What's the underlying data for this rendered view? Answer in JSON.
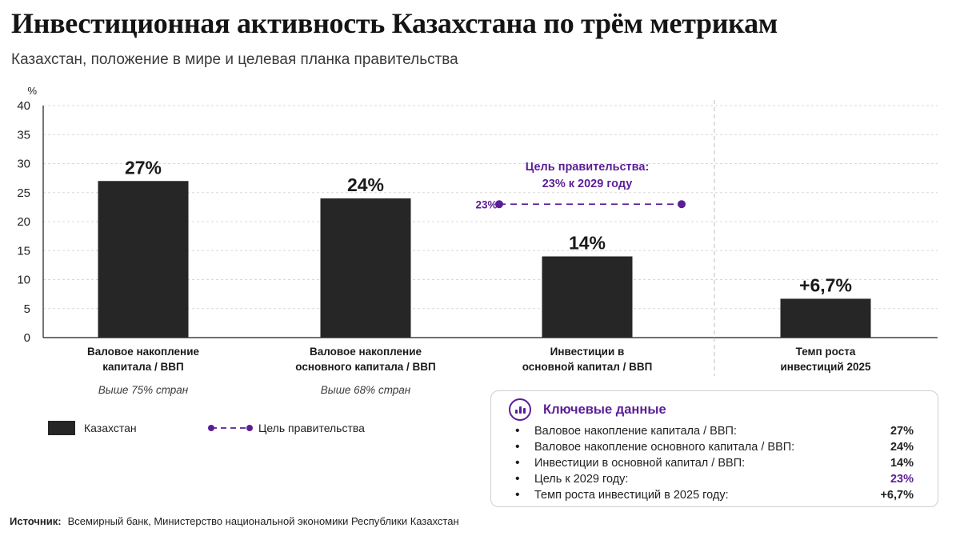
{
  "header": {
    "title": "Инвестиционная активность Казахстана по трём метрикам",
    "subtitle": "Казахстан, положение в мире и целевая планка правительства"
  },
  "chart_data": {
    "type": "bar",
    "ylabel": "%",
    "ylim": [
      0,
      40
    ],
    "yticks": [
      "0",
      "5",
      "10",
      "15",
      "20",
      "25",
      "30",
      "35",
      "40"
    ],
    "grid": true,
    "bars": [
      {
        "label_lines": [
          "Валовое накопление",
          "капитала / ВВП"
        ],
        "value": 27,
        "value_label": "27%",
        "note": "Выше 75% стран"
      },
      {
        "label_lines": [
          "Валовое накопление",
          "основного капитала / ВВП"
        ],
        "value": 24,
        "value_label": "24%",
        "note": "Выше 68% стран"
      },
      {
        "label_lines": [
          "Инвестиции в",
          "основной капитал / ВВП"
        ],
        "value": 14,
        "value_label": "14%",
        "note": ""
      },
      {
        "label_lines": [
          "Темп роста",
          "инвестиций 2025"
        ],
        "value": 6.7,
        "value_label": "+6,7%",
        "note": ""
      }
    ],
    "target": {
      "value": 23,
      "value_label": "23%",
      "annotation_lines": [
        "Цель правительства:",
        "23% к 2029 году"
      ]
    },
    "legend": [
      {
        "name": "Казахстан",
        "kind": "bar"
      },
      {
        "name": "Цель правительства",
        "kind": "dashed-line"
      }
    ],
    "colors": {
      "bar": "#262626",
      "target": "#5b1e96",
      "grid": "#d9d9d9",
      "axis": "#1a1a1a",
      "divider": "#bdbdbd"
    }
  },
  "key_data": {
    "title": "Ключевые данные",
    "items": [
      {
        "label": "Валовое накопление капитала / ВВП:",
        "value": "27%"
      },
      {
        "label": "Валовое накопление основного капитала / ВВП:",
        "value": "24%"
      },
      {
        "label": "Инвестиции в основной капитал / ВВП:",
        "value": "14%"
      },
      {
        "label": "Цель к 2029 году:",
        "value": "23%"
      },
      {
        "label": "Темп роста инвестиций в 2025 году:",
        "value": "+6,7%"
      }
    ]
  },
  "source": {
    "label": "Источник:",
    "text": "Всемирный банк, Министерство национальной экономики Республики Казахстан"
  }
}
